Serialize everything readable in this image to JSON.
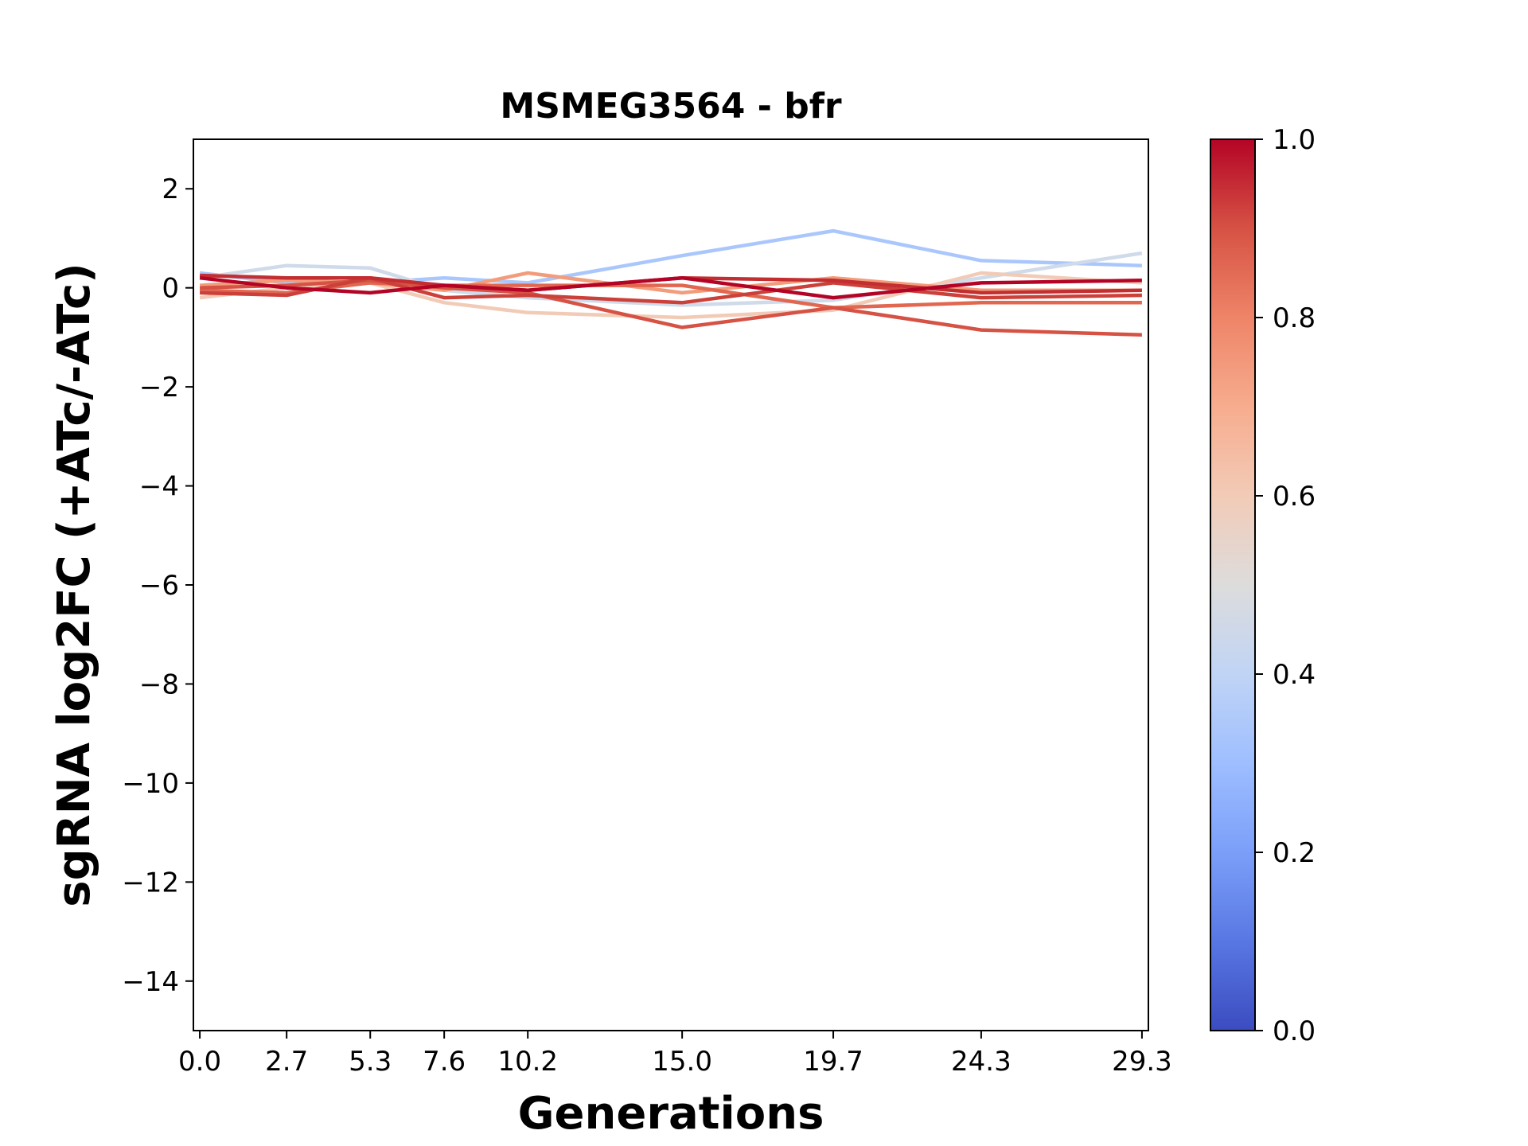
{
  "chart_data": {
    "type": "line",
    "title": "MSMEG3564 - bfr",
    "xlabel": "Generations",
    "ylabel": "sgRNA log2FC (+ATc/-ATc)",
    "x": [
      0.0,
      2.7,
      5.3,
      7.6,
      10.2,
      15.0,
      19.7,
      24.3,
      29.3
    ],
    "x_tick_labels": [
      "0.0",
      "2.7",
      "5.3",
      "7.6",
      "10.2",
      "15.0",
      "19.7",
      "24.3",
      "29.3"
    ],
    "xlim": [
      -0.2,
      29.5
    ],
    "ylim": [
      -15,
      3
    ],
    "y_ticks": [
      2,
      0,
      -2,
      -4,
      -6,
      -8,
      -10,
      -12,
      -14
    ],
    "y_tick_labels": [
      "2",
      "0",
      "−2",
      "−4",
      "−6",
      "−8",
      "−10",
      "−12",
      "−14"
    ],
    "colormap": "coolwarm",
    "colorbar": {
      "range": [
        0.0,
        1.0
      ],
      "ticks": [
        0.0,
        0.2,
        0.4,
        0.6,
        0.8,
        1.0
      ],
      "tick_labels": [
        "0.0",
        "0.2",
        "0.4",
        "0.6",
        "0.8",
        "1.0"
      ],
      "stops": [
        "#3b4cc0",
        "#5977e3",
        "#7b9ff9",
        "#9ebeff",
        "#c0d4f5",
        "#dddcdc",
        "#f2cbb7",
        "#f7ac8e",
        "#ee8468",
        "#d65244",
        "#b40426"
      ]
    },
    "series": [
      {
        "color": "#aac7fd",
        "values": [
          0.3,
          0.1,
          0.1,
          0.2,
          0.1,
          0.65,
          1.15,
          0.55,
          0.45
        ]
      },
      {
        "color": "#cfdaea",
        "values": [
          0.2,
          0.45,
          0.4,
          -0.05,
          -0.2,
          -0.35,
          -0.25,
          0.2,
          0.7
        ]
      },
      {
        "color": "#f2cbb7",
        "values": [
          -0.2,
          0.0,
          0.1,
          -0.3,
          -0.5,
          -0.6,
          -0.45,
          0.3,
          0.1
        ]
      },
      {
        "color": "#f39c7b",
        "values": [
          0.05,
          0.15,
          0.1,
          -0.05,
          0.3,
          -0.1,
          0.2,
          -0.05,
          -0.05
        ]
      },
      {
        "color": "#e16751",
        "values": [
          -0.05,
          -0.1,
          0.1,
          0.05,
          0.05,
          0.05,
          -0.4,
          -0.3,
          -0.3
        ]
      },
      {
        "color": "#d65244",
        "values": [
          0.0,
          0.05,
          0.15,
          0.0,
          -0.1,
          -0.8,
          -0.4,
          -0.85,
          -0.95
        ]
      },
      {
        "color": "#cc403a",
        "values": [
          -0.1,
          -0.15,
          0.2,
          -0.2,
          -0.15,
          -0.3,
          0.1,
          -0.2,
          -0.15
        ]
      },
      {
        "color": "#c32e31",
        "values": [
          0.25,
          0.2,
          0.2,
          0.05,
          -0.05,
          0.2,
          0.15,
          -0.1,
          -0.05
        ]
      },
      {
        "color": "#b40426",
        "values": [
          0.2,
          0.0,
          -0.1,
          0.05,
          -0.05,
          0.2,
          -0.2,
          0.1,
          0.15
        ]
      }
    ]
  }
}
